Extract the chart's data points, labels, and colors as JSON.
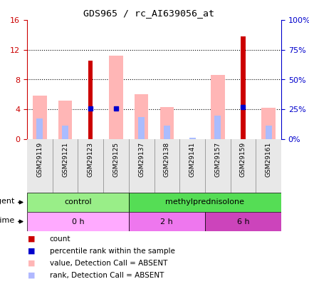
{
  "title": "GDS965 / rc_AI639056_at",
  "samples": [
    "GSM29119",
    "GSM29121",
    "GSM29123",
    "GSM29125",
    "GSM29137",
    "GSM29138",
    "GSM29141",
    "GSM29157",
    "GSM29159",
    "GSM29161"
  ],
  "red_bars": [
    0,
    0,
    10.5,
    0,
    0,
    0,
    0,
    0,
    13.8,
    0
  ],
  "pink_bars": [
    5.8,
    5.2,
    0,
    11.2,
    6.0,
    4.3,
    0,
    8.6,
    0,
    4.2
  ],
  "blue_squares": [
    0,
    0,
    4.1,
    4.1,
    0,
    0,
    0,
    0,
    4.3,
    0
  ],
  "light_blue_bars": [
    2.8,
    1.8,
    0,
    0,
    3.0,
    1.8,
    0.2,
    3.2,
    0,
    1.8
  ],
  "ylim_left": [
    0,
    16
  ],
  "ylim_right": [
    0,
    100
  ],
  "yticks_left": [
    0,
    4,
    8,
    12,
    16
  ],
  "ytick_labels_left": [
    "0",
    "4",
    "8",
    "12",
    "16"
  ],
  "ytick_labels_right": [
    "0%",
    "25%",
    "50%",
    "75%",
    "100%"
  ],
  "agent_groups": [
    {
      "label": "control",
      "start": 0,
      "end": 4,
      "color": "#99EE88"
    },
    {
      "label": "methylprednisolone",
      "start": 4,
      "end": 10,
      "color": "#55DD55"
    }
  ],
  "time_groups": [
    {
      "label": "0 h",
      "start": 0,
      "end": 4,
      "color": "#FFAAFF"
    },
    {
      "label": "2 h",
      "start": 4,
      "end": 7,
      "color": "#EE77EE"
    },
    {
      "label": "6 h",
      "start": 7,
      "end": 10,
      "color": "#CC44BB"
    }
  ],
  "legend_items": [
    {
      "color": "#CC0000",
      "label": "count"
    },
    {
      "color": "#0000CC",
      "label": "percentile rank within the sample"
    },
    {
      "color": "#FFB6B6",
      "label": "value, Detection Call = ABSENT"
    },
    {
      "color": "#B0B8FF",
      "label": "rank, Detection Call = ABSENT"
    }
  ],
  "left_axis_color": "#CC0000",
  "right_axis_color": "#0000CC",
  "grid_ticks": [
    4,
    8,
    12
  ]
}
